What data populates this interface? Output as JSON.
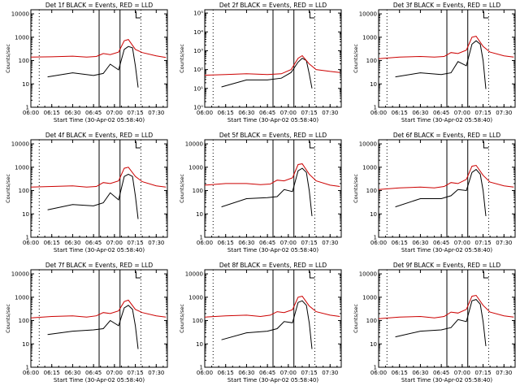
{
  "chart_data": [
    {
      "type": "line",
      "title": "Det 1f BLACK = Events, RED = LLD",
      "xlabel": "Start Time (30-Apr-02 05:58:40)",
      "ylabel": "Counts/sec",
      "x_ticks": [
        "06:00",
        "06:15",
        "06:30",
        "06:45",
        "07:00",
        "07:15",
        "07:30"
      ],
      "y_ticks": [
        "1",
        "10",
        "100",
        "1000",
        "10000"
      ],
      "xlim": [
        "06:00",
        "07:38"
      ],
      "ylim": [
        1,
        15000
      ],
      "yscale": "log",
      "solid_markers": [
        "06:49",
        "07:04"
      ],
      "dotted_markers": [
        "06:06",
        "07:19"
      ],
      "series": [
        {
          "color": "#000000",
          "x": [
            "06:12",
            "06:30",
            "06:45",
            "06:52",
            "06:57",
            "07:03",
            "07:07",
            "07:10",
            "07:13",
            "07:15",
            "07:17"
          ],
          "values": [
            20,
            30,
            23,
            28,
            70,
            40,
            300,
            400,
            350,
            60,
            7
          ]
        },
        {
          "color": "#cc0000",
          "x": [
            "06:00",
            "06:15",
            "06:30",
            "06:40",
            "06:47",
            "06:52",
            "06:57",
            "07:03",
            "07:07",
            "07:10",
            "07:15",
            "07:20",
            "07:30",
            "07:37"
          ],
          "values": [
            140,
            145,
            155,
            140,
            150,
            200,
            180,
            230,
            700,
            800,
            300,
            220,
            160,
            135
          ]
        }
      ]
    },
    {
      "type": "line",
      "title": "Det 2f BLACK = Events, RED = LLD",
      "xlabel": "Start Time (30-Apr-02 05:58:40)",
      "ylabel": "Counts/sec",
      "x_ticks": [
        "06:00",
        "06:15",
        "06:30",
        "06:45",
        "07:00",
        "07:15",
        "07:30"
      ],
      "y_ticks": [
        "10⁰",
        "10¹",
        "10²",
        "10³",
        "10⁴",
        "10⁵"
      ],
      "xlim": [
        "06:00",
        "07:38"
      ],
      "ylim": [
        1,
        150000
      ],
      "yscale": "log",
      "solid_markers": [
        "06:49",
        "07:04"
      ],
      "dotted_markers": [
        "06:06",
        "07:19"
      ],
      "series": [
        {
          "color": "#000000",
          "x": [
            "06:12",
            "06:30",
            "06:45",
            "06:55",
            "07:02",
            "07:07",
            "07:10",
            "07:13",
            "07:15",
            "07:17"
          ],
          "values": [
            12,
            28,
            28,
            35,
            70,
            250,
            400,
            300,
            60,
            10
          ]
        },
        {
          "color": "#cc0000",
          "x": [
            "06:00",
            "06:15",
            "06:30",
            "06:45",
            "06:55",
            "07:02",
            "07:07",
            "07:10",
            "07:15",
            "07:20",
            "07:30",
            "07:37"
          ],
          "values": [
            50,
            55,
            60,
            55,
            60,
            100,
            400,
            550,
            200,
            100,
            80,
            70
          ]
        }
      ]
    },
    {
      "type": "line",
      "title": "Det 3f BLACK = Events, RED = LLD",
      "xlabel": "Start Time (30-Apr-02 05:58:40)",
      "ylabel": "Counts/sec",
      "x_ticks": [
        "06:00",
        "06:15",
        "06:30",
        "06:45",
        "07:00",
        "07:15",
        "07:30"
      ],
      "y_ticks": [
        "1",
        "10",
        "100",
        "1000",
        "10000"
      ],
      "xlim": [
        "06:00",
        "07:38"
      ],
      "ylim": [
        1,
        15000
      ],
      "yscale": "log",
      "solid_markers": [
        "06:49",
        "07:04"
      ],
      "dotted_markers": [
        "06:06",
        "07:19"
      ],
      "series": [
        {
          "color": "#000000",
          "x": [
            "06:12",
            "06:30",
            "06:45",
            "06:52",
            "06:57",
            "07:03",
            "07:07",
            "07:10",
            "07:13",
            "07:15",
            "07:17"
          ],
          "values": [
            20,
            30,
            25,
            30,
            90,
            60,
            500,
            700,
            500,
            100,
            6
          ]
        },
        {
          "color": "#cc0000",
          "x": [
            "06:00",
            "06:15",
            "06:30",
            "06:40",
            "06:47",
            "06:52",
            "06:57",
            "07:03",
            "07:07",
            "07:10",
            "07:15",
            "07:20",
            "07:30",
            "07:37"
          ],
          "values": [
            120,
            140,
            150,
            140,
            150,
            220,
            200,
            280,
            1000,
            1100,
            400,
            230,
            160,
            140
          ]
        }
      ]
    },
    {
      "type": "line",
      "title": "Det 4f BLACK = Events, RED = LLD",
      "xlabel": "Start Time (30-Apr-02 05:58:40)",
      "ylabel": "Counts/sec",
      "x_ticks": [
        "06:00",
        "06:15",
        "06:30",
        "06:45",
        "07:00",
        "07:15",
        "07:30"
      ],
      "y_ticks": [
        "1",
        "10",
        "100",
        "1000",
        "10000"
      ],
      "xlim": [
        "06:00",
        "07:38"
      ],
      "ylim": [
        1,
        15000
      ],
      "yscale": "log",
      "solid_markers": [
        "06:49",
        "07:04"
      ],
      "dotted_markers": [
        "06:06",
        "07:19"
      ],
      "series": [
        {
          "color": "#000000",
          "x": [
            "06:12",
            "06:30",
            "06:45",
            "06:52",
            "06:57",
            "07:03",
            "07:07",
            "07:10",
            "07:13",
            "07:15",
            "07:17"
          ],
          "values": [
            15,
            25,
            22,
            30,
            80,
            40,
            400,
            500,
            400,
            60,
            6
          ]
        },
        {
          "color": "#cc0000",
          "x": [
            "06:00",
            "06:15",
            "06:30",
            "06:40",
            "06:47",
            "06:52",
            "06:57",
            "07:03",
            "07:07",
            "07:10",
            "07:15",
            "07:20",
            "07:30",
            "07:37"
          ],
          "values": [
            140,
            150,
            160,
            140,
            150,
            220,
            200,
            260,
            900,
            1000,
            400,
            240,
            160,
            140
          ]
        }
      ]
    },
    {
      "type": "line",
      "title": "Det 5f BLACK = Events, RED = LLD",
      "xlabel": "Start Time (30-Apr-02 05:58:40)",
      "ylabel": "Counts/sec",
      "x_ticks": [
        "06:00",
        "06:15",
        "06:30",
        "06:45",
        "07:00",
        "07:15",
        "07:30"
      ],
      "y_ticks": [
        "1",
        "10",
        "100",
        "1000",
        "10000"
      ],
      "xlim": [
        "06:00",
        "07:38"
      ],
      "ylim": [
        1,
        15000
      ],
      "yscale": "log",
      "solid_markers": [
        "06:49",
        "07:04"
      ],
      "dotted_markers": [
        "06:06",
        "07:19"
      ],
      "series": [
        {
          "color": "#000000",
          "x": [
            "06:12",
            "06:30",
            "06:45",
            "06:52",
            "06:57",
            "07:03",
            "07:07",
            "07:10",
            "07:13",
            "07:15",
            "07:17"
          ],
          "values": [
            20,
            45,
            50,
            55,
            110,
            90,
            700,
            900,
            600,
            100,
            8
          ]
        },
        {
          "color": "#cc0000",
          "x": [
            "06:00",
            "06:15",
            "06:30",
            "06:40",
            "06:47",
            "06:52",
            "06:57",
            "07:03",
            "07:07",
            "07:10",
            "07:15",
            "07:20",
            "07:30",
            "07:37"
          ],
          "values": [
            170,
            200,
            200,
            180,
            190,
            280,
            260,
            350,
            1300,
            1400,
            500,
            260,
            170,
            150
          ]
        }
      ]
    },
    {
      "type": "line",
      "title": "Det 6f BLACK = Events, RED = LLD",
      "xlabel": "Start Time (30-Apr-02 05:58:40)",
      "ylabel": "Counts/sec",
      "x_ticks": [
        "06:00",
        "06:15",
        "06:30",
        "06:45",
        "07:00",
        "07:15",
        "07:30"
      ],
      "y_ticks": [
        "1",
        "10",
        "100",
        "1000",
        "10000"
      ],
      "xlim": [
        "06:00",
        "07:38"
      ],
      "ylim": [
        1,
        15000
      ],
      "yscale": "log",
      "solid_markers": [
        "06:49",
        "07:04"
      ],
      "dotted_markers": [
        "06:06",
        "07:19"
      ],
      "series": [
        {
          "color": "#000000",
          "x": [
            "06:12",
            "06:30",
            "06:45",
            "06:52",
            "06:57",
            "07:03",
            "07:07",
            "07:10",
            "07:13",
            "07:15",
            "07:17"
          ],
          "values": [
            20,
            45,
            45,
            60,
            110,
            100,
            600,
            800,
            500,
            100,
            8
          ]
        },
        {
          "color": "#cc0000",
          "x": [
            "06:00",
            "06:15",
            "06:30",
            "06:40",
            "06:47",
            "06:52",
            "06:57",
            "07:03",
            "07:07",
            "07:10",
            "07:15",
            "07:20",
            "07:30",
            "07:37"
          ],
          "values": [
            110,
            130,
            140,
            130,
            150,
            220,
            200,
            300,
            1100,
            1200,
            450,
            230,
            160,
            140
          ]
        }
      ]
    },
    {
      "type": "line",
      "title": "Det 7f BLACK = Events, RED = LLD",
      "xlabel": "Start Time (30-Apr-02 05:58:40)",
      "ylabel": "Counts/sec",
      "x_ticks": [
        "06:00",
        "06:15",
        "06:30",
        "06:45",
        "07:00",
        "07:15",
        "07:30"
      ],
      "y_ticks": [
        "1",
        "10",
        "100",
        "1000",
        "10000"
      ],
      "xlim": [
        "06:00",
        "07:38"
      ],
      "ylim": [
        1,
        15000
      ],
      "yscale": "log",
      "solid_markers": [
        "06:49",
        "07:04"
      ],
      "dotted_markers": [
        "06:06",
        "07:19"
      ],
      "series": [
        {
          "color": "#000000",
          "x": [
            "06:12",
            "06:30",
            "06:45",
            "06:52",
            "06:57",
            "07:03",
            "07:07",
            "07:10",
            "07:13",
            "07:15",
            "07:17"
          ],
          "values": [
            25,
            35,
            40,
            45,
            100,
            60,
            350,
            450,
            300,
            60,
            6
          ]
        },
        {
          "color": "#cc0000",
          "x": [
            "06:00",
            "06:15",
            "06:30",
            "06:40",
            "06:47",
            "06:52",
            "06:57",
            "07:03",
            "07:07",
            "07:10",
            "07:15",
            "07:20",
            "07:30",
            "07:37"
          ],
          "values": [
            130,
            150,
            160,
            140,
            160,
            220,
            200,
            260,
            650,
            750,
            300,
            220,
            160,
            140
          ]
        }
      ]
    },
    {
      "type": "line",
      "title": "Det 8f BLACK = Events, RED = LLD",
      "xlabel": "Start Time (30-Apr-02 05:58:40)",
      "ylabel": "Counts/sec",
      "x_ticks": [
        "06:00",
        "06:15",
        "06:30",
        "06:45",
        "07:00",
        "07:15",
        "07:30"
      ],
      "y_ticks": [
        "1",
        "10",
        "100",
        "1000",
        "10000"
      ],
      "xlim": [
        "06:00",
        "07:38"
      ],
      "ylim": [
        1,
        15000
      ],
      "yscale": "log",
      "solid_markers": [
        "06:49",
        "07:04"
      ],
      "dotted_markers": [
        "06:06",
        "07:19"
      ],
      "series": [
        {
          "color": "#000000",
          "x": [
            "06:12",
            "06:30",
            "06:45",
            "06:52",
            "06:57",
            "07:03",
            "07:07",
            "07:10",
            "07:13",
            "07:15",
            "07:17"
          ],
          "values": [
            15,
            30,
            35,
            45,
            90,
            80,
            600,
            700,
            450,
            80,
            6
          ]
        },
        {
          "color": "#cc0000",
          "x": [
            "06:00",
            "06:15",
            "06:30",
            "06:40",
            "06:47",
            "06:52",
            "06:57",
            "07:03",
            "07:07",
            "07:10",
            "07:15",
            "07:20",
            "07:30",
            "07:37"
          ],
          "values": [
            140,
            160,
            170,
            150,
            170,
            240,
            220,
            290,
            1000,
            1100,
            420,
            240,
            170,
            150
          ]
        }
      ]
    },
    {
      "type": "line",
      "title": "Det 9f BLACK = Events, RED = LLD",
      "xlabel": "Start Time (30-Apr-02 05:58:40)",
      "ylabel": "Counts/sec",
      "x_ticks": [
        "06:00",
        "06:15",
        "06:30",
        "06:45",
        "07:00",
        "07:15",
        "07:30"
      ],
      "y_ticks": [
        "1",
        "10",
        "100",
        "1000",
        "10000"
      ],
      "xlim": [
        "06:00",
        "07:38"
      ],
      "ylim": [
        1,
        15000
      ],
      "yscale": "log",
      "solid_markers": [
        "06:49",
        "07:04"
      ],
      "dotted_markers": [
        "06:06",
        "07:19"
      ],
      "series": [
        {
          "color": "#000000",
          "x": [
            "06:12",
            "06:30",
            "06:45",
            "06:52",
            "06:57",
            "07:03",
            "07:07",
            "07:10",
            "07:13",
            "07:15",
            "07:17"
          ],
          "values": [
            20,
            35,
            40,
            50,
            110,
            90,
            700,
            800,
            500,
            90,
            8
          ]
        },
        {
          "color": "#cc0000",
          "x": [
            "06:00",
            "06:15",
            "06:30",
            "06:40",
            "06:47",
            "06:52",
            "06:57",
            "07:03",
            "07:07",
            "07:10",
            "07:15",
            "07:20",
            "07:30",
            "07:37"
          ],
          "values": [
            120,
            140,
            150,
            130,
            150,
            230,
            210,
            300,
            1100,
            1200,
            450,
            230,
            160,
            140
          ]
        }
      ]
    }
  ]
}
